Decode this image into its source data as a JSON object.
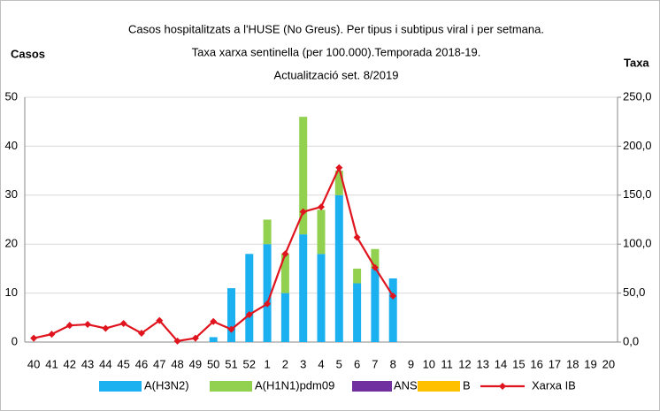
{
  "chart_data": {
    "type": "bar",
    "title_lines": [
      "Casos hospitalitzats a l'HUSE (No Greus). Per tipus  i subtipus  viral i per setmana.",
      "Taxa xarxa sentinella (per 100.000).Temporada 2018-19.",
      "Actualització set. 8/2019"
    ],
    "ylabel": "Casos",
    "y2label": "Taxa",
    "categories": [
      "40",
      "41",
      "42",
      "43",
      "44",
      "45",
      "46",
      "47",
      "48",
      "49",
      "50",
      "51",
      "52",
      "1",
      "2",
      "3",
      "4",
      "5",
      "6",
      "7",
      "8",
      "9",
      "10",
      "11",
      "12",
      "13",
      "14",
      "15",
      "16",
      "17",
      "18",
      "19",
      "20"
    ],
    "series": [
      {
        "name": "A(H3N2)",
        "color": "#1bb0ef",
        "values": [
          0,
          0,
          0,
          0,
          0,
          0,
          0,
          0,
          0,
          0,
          1,
          11,
          18,
          20,
          10,
          22,
          18,
          30,
          12,
          15,
          13,
          null,
          null,
          null,
          null,
          null,
          null,
          null,
          null,
          null,
          null,
          null,
          null
        ]
      },
      {
        "name": "A(H1N1)pdm09",
        "color": "#92d050",
        "values": [
          0,
          0,
          0,
          0,
          0,
          0,
          0,
          0,
          0,
          0,
          0,
          0,
          0,
          5,
          8,
          24,
          9,
          5,
          3,
          4,
          0,
          null,
          null,
          null,
          null,
          null,
          null,
          null,
          null,
          null,
          null,
          null,
          null
        ]
      },
      {
        "name": "ANS",
        "color": "#7030a0",
        "values": [
          0,
          0,
          0,
          0,
          0,
          0,
          0,
          0,
          0,
          0,
          0,
          0,
          0,
          0,
          0,
          0,
          0,
          0,
          0,
          0,
          0,
          null,
          null,
          null,
          null,
          null,
          null,
          null,
          null,
          null,
          null,
          null,
          null
        ]
      },
      {
        "name": "B",
        "color": "#ffc000",
        "values": [
          0,
          0,
          0,
          0,
          0,
          0,
          0,
          0,
          0,
          0,
          0,
          0,
          0,
          0,
          0,
          0,
          0,
          0,
          0,
          0,
          0,
          null,
          null,
          null,
          null,
          null,
          null,
          null,
          null,
          null,
          null,
          null,
          null
        ]
      },
      {
        "name": "Xarxa IB",
        "color": "#e0141e",
        "axis": "y2",
        "type": "line",
        "values": [
          4,
          8,
          17,
          18,
          14,
          19,
          9,
          22,
          1,
          4,
          21,
          13,
          28,
          39,
          90,
          133,
          138,
          178,
          107,
          76,
          47,
          null,
          null,
          null,
          null,
          null,
          null,
          null,
          null,
          null,
          null,
          null,
          null
        ]
      }
    ],
    "ylim": [
      0,
      50
    ],
    "yticks": [
      0,
      10,
      20,
      30,
      40,
      50
    ],
    "y2lim": [
      0,
      250
    ],
    "y2ticks": [
      {
        "value": 0,
        "label": "0,0"
      },
      {
        "value": 50,
        "label": "50,0"
      },
      {
        "value": 100,
        "label": "100,0"
      },
      {
        "value": 150,
        "label": "150,0"
      },
      {
        "value": 200,
        "label": "200,0"
      },
      {
        "value": 250,
        "label": "250,0"
      }
    ],
    "grid": true
  }
}
